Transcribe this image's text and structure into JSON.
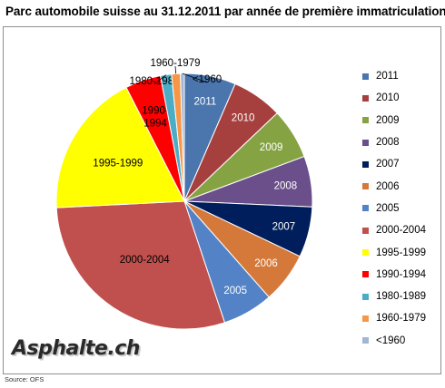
{
  "title": "Parc automobile suisse au 31.12.2011  par année de première immatriculation",
  "logo_text": "Asphalte.ch",
  "source_text": "Source:  OFS",
  "chart_data": {
    "type": "pie",
    "title": "Parc automobile suisse au 31.12.2011  par année de première immatriculation",
    "legend_position": "right",
    "slices": [
      {
        "label": "2011",
        "value": 6.5,
        "color": "#4a76ad"
      },
      {
        "label": "2010",
        "value": 6.4,
        "color": "#a6403e"
      },
      {
        "label": "2009",
        "value": 6.4,
        "color": "#86a344"
      },
      {
        "label": "2008",
        "value": 6.4,
        "color": "#6a4f8a"
      },
      {
        "label": "2007",
        "value": 6.4,
        "color": "#001e5b"
      },
      {
        "label": "2006",
        "value": 6.4,
        "color": "#d5793b"
      },
      {
        "label": "2005",
        "value": 6.4,
        "color": "#5383c6"
      },
      {
        "label": "2000-2004",
        "value": 29.3,
        "color": "#c0504d"
      },
      {
        "label": "1995-1999",
        "value": 18.3,
        "color": "#ffff00"
      },
      {
        "label": "1990-1994",
        "value": 4.5,
        "color": "#ff0000"
      },
      {
        "label": "1980-1989",
        "value": 1.4,
        "color": "#4bacc6"
      },
      {
        "label": "1960-1979",
        "value": 1.1,
        "color": "#f79646"
      },
      {
        "label": "<1960",
        "value": 0.5,
        "color": "#a3b6d4"
      }
    ]
  }
}
